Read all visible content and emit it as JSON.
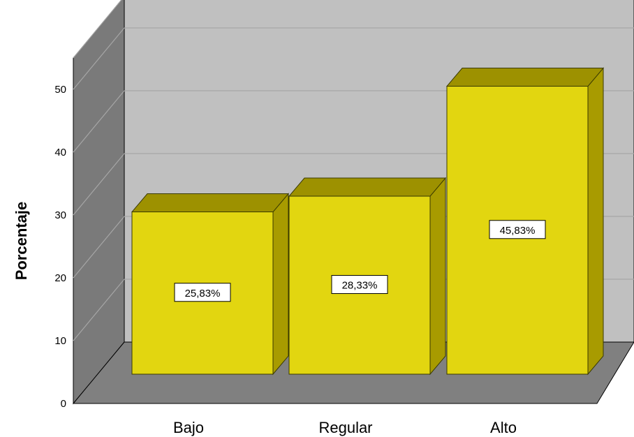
{
  "chart_data": {
    "type": "bar",
    "categories": [
      "Bajo",
      "Regular",
      "Alto"
    ],
    "values": [
      25.83,
      28.33,
      45.83
    ],
    "data_labels": [
      "25,83%",
      "28,33%",
      "45,83%"
    ],
    "ylabel": "Porcentaje",
    "xlabel": "",
    "ylim": [
      0,
      50
    ],
    "yticks": [
      "0",
      "10",
      "20",
      "30",
      "40",
      "50"
    ],
    "grid": true,
    "style": "3d",
    "colors": {
      "bar_front": "#e2d610",
      "bar_top": "#9d9100",
      "bar_side": "#a89b00",
      "back_wall": "#c0c0c0",
      "side_wall": "#7a7a7a",
      "floor": "#808080",
      "grid": "#a6a6a6"
    }
  }
}
